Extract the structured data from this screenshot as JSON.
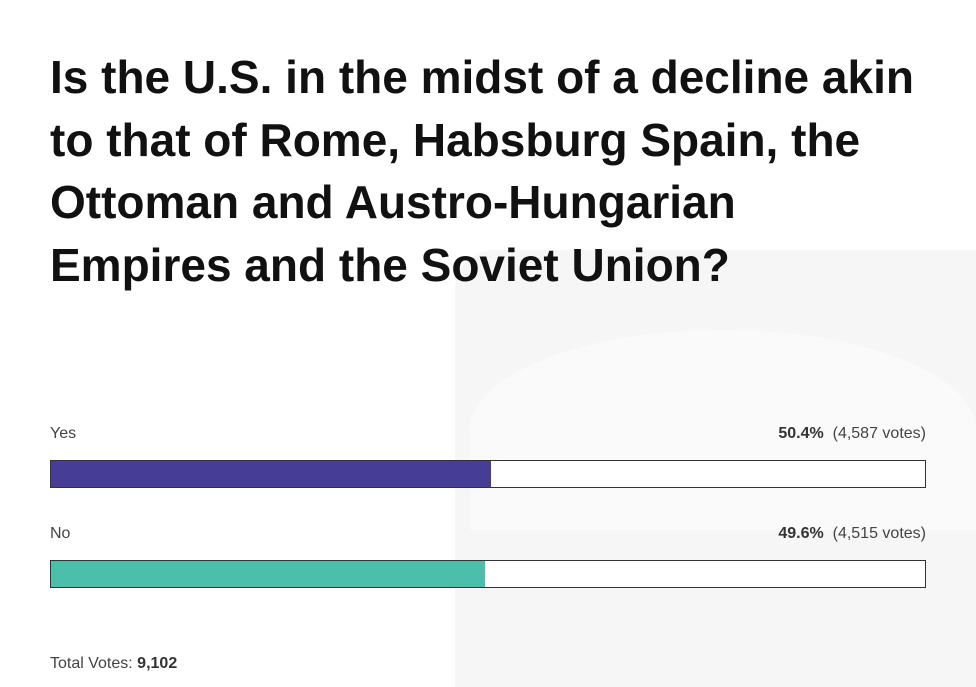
{
  "poll": {
    "question": "Is the U.S. in the midst of a decline akin to that of Rome, Habsburg Spain, the Ottoman and Austro-Hungarian Empires and the Soviet Union?",
    "options": [
      {
        "label": "Yes",
        "percent": 50.4,
        "percent_label": "50.4%",
        "votes_label": "(4,587 votes)",
        "color": "#463d96"
      },
      {
        "label": "No",
        "percent": 49.6,
        "percent_label": "49.6%",
        "votes_label": "(4,515 votes)",
        "color": "#4bbfaa"
      }
    ],
    "total_label": "Total Votes:",
    "total": "9,102"
  }
}
